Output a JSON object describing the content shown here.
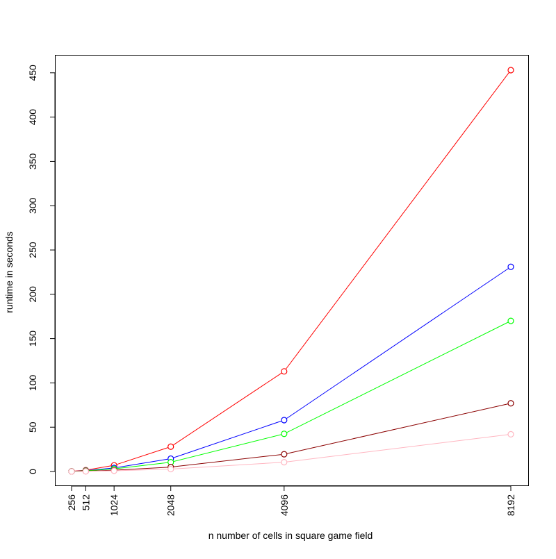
{
  "chart_data": {
    "type": "line",
    "title": "",
    "xlabel": "n number of cells in square game field",
    "ylabel": "runtime in seconds",
    "x": [
      256,
      512,
      1024,
      2048,
      4096,
      8192
    ],
    "x_tick_labels": [
      "256",
      "512",
      "1024",
      "2048",
      "4096",
      "8192"
    ],
    "xlim": [
      256,
      8192
    ],
    "ylim": [
      0,
      453
    ],
    "y_ticks": [
      0,
      50,
      100,
      150,
      200,
      250,
      300,
      350,
      400,
      450
    ],
    "y_tick_labels": [
      "0",
      "50",
      "100",
      "150",
      "200",
      "250",
      "300",
      "350",
      "400",
      "450"
    ],
    "grid": false,
    "legend": "none",
    "series": [
      {
        "color": "#ff0000",
        "values": [
          0.2,
          1.5,
          7,
          28,
          113,
          453
        ]
      },
      {
        "color": "#0000ff",
        "values": [
          0.1,
          1,
          4,
          14.5,
          58,
          231
        ]
      },
      {
        "color": "#00ff00",
        "values": [
          0.1,
          0.8,
          3,
          10.5,
          42.5,
          170
        ]
      },
      {
        "color": "#8b0000",
        "values": [
          0.05,
          0.4,
          1.5,
          5,
          19.5,
          77
        ]
      },
      {
        "color": "#ffb6c1",
        "values": [
          0.03,
          0.2,
          0.8,
          2.7,
          10.5,
          42
        ]
      }
    ]
  }
}
